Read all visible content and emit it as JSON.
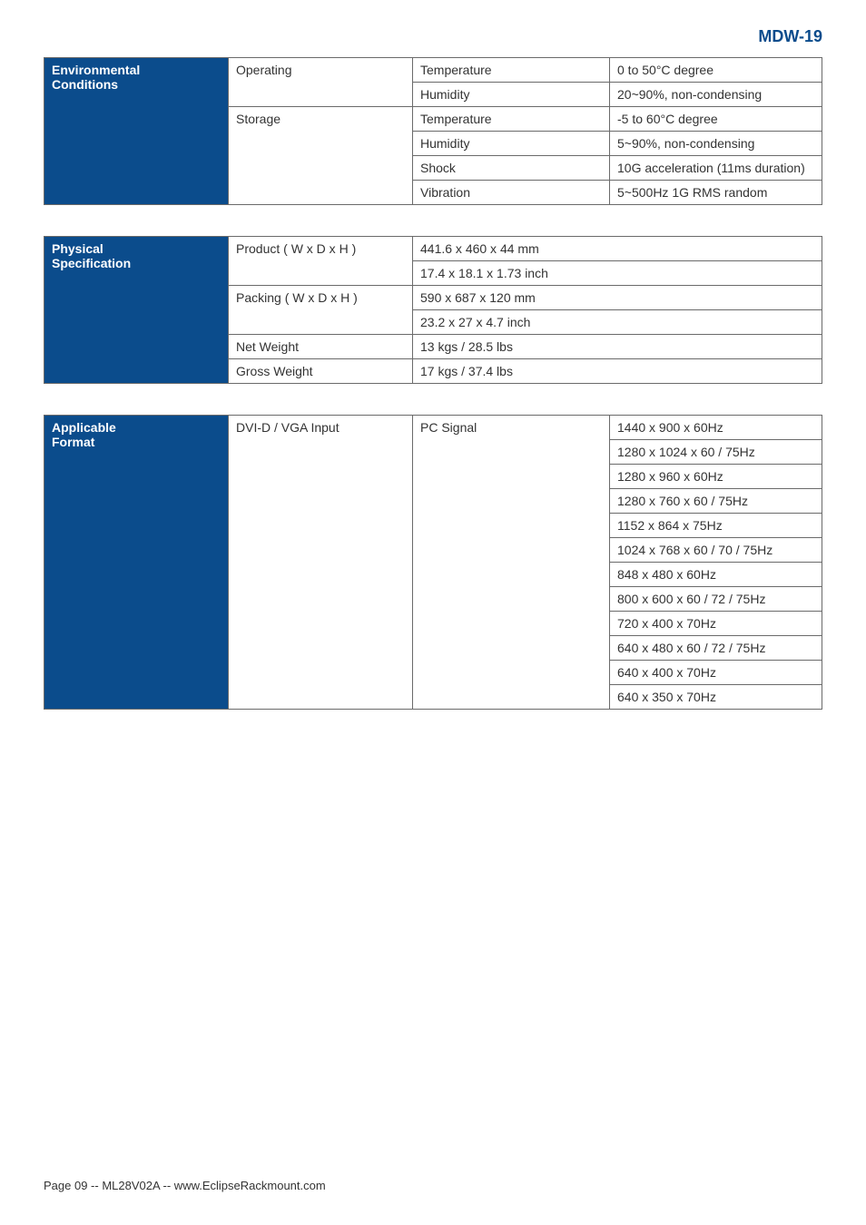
{
  "title": "MDW-19",
  "environmental": {
    "header": "Environmental Conditions",
    "rows": [
      {
        "cat": "Operating",
        "catRowspan": 2,
        "param": "Temperature",
        "val": "0 to 50°C degree"
      },
      {
        "param": "Humidity",
        "val": "20~90%, non-condensing"
      },
      {
        "cat": "Storage",
        "catRowspan": 4,
        "param": "Temperature",
        "val": "-5 to 60°C degree"
      },
      {
        "param": "Humidity",
        "val": "5~90%, non-condensing"
      },
      {
        "param": "Shock",
        "val": "10G acceleration (11ms duration)"
      },
      {
        "param": "Vibration",
        "val": "5~500Hz 1G RMS random"
      }
    ]
  },
  "physical": {
    "header": "Physical Specification",
    "rows": [
      {
        "label": "Product ( W x D x H )",
        "labelRowspan": 2,
        "val": "441.6 x 460 x 44 mm"
      },
      {
        "val": "17.4 x 18.1 x 1.73 inch"
      },
      {
        "label": "Packing ( W x D x H )",
        "labelRowspan": 2,
        "val": "590 x 687 x 120 mm"
      },
      {
        "val": "23.2 x 27 x 4.7 inch"
      },
      {
        "label": "Net Weight",
        "val": "13 kgs / 28.5 lbs"
      },
      {
        "label": "Gross Weight",
        "val": "17 kgs / 37.4 lbs"
      }
    ]
  },
  "applicable": {
    "header": "Applicable Format",
    "input": "DVI-D / VGA Input",
    "signal": "PC Signal",
    "resolutions": [
      "1440 x 900 x 60Hz",
      "1280 x 1024 x 60 / 75Hz",
      "1280 x 960 x 60Hz",
      "1280 x 760 x 60 / 75Hz",
      "1152 x 864 x 75Hz",
      "1024 x 768 x 60 / 70 / 75Hz",
      "848 x 480 x 60Hz",
      "800 x 600 x 60 / 72 / 75Hz",
      "720 x 400 x 70Hz",
      "640 x 480 x 60 / 72 / 75Hz",
      "640 x 400 x 70Hz",
      "640 x 350 x 70Hz"
    ]
  },
  "footer": "Page 09 -- ML28V02A -- www.EclipseRackmount.com"
}
